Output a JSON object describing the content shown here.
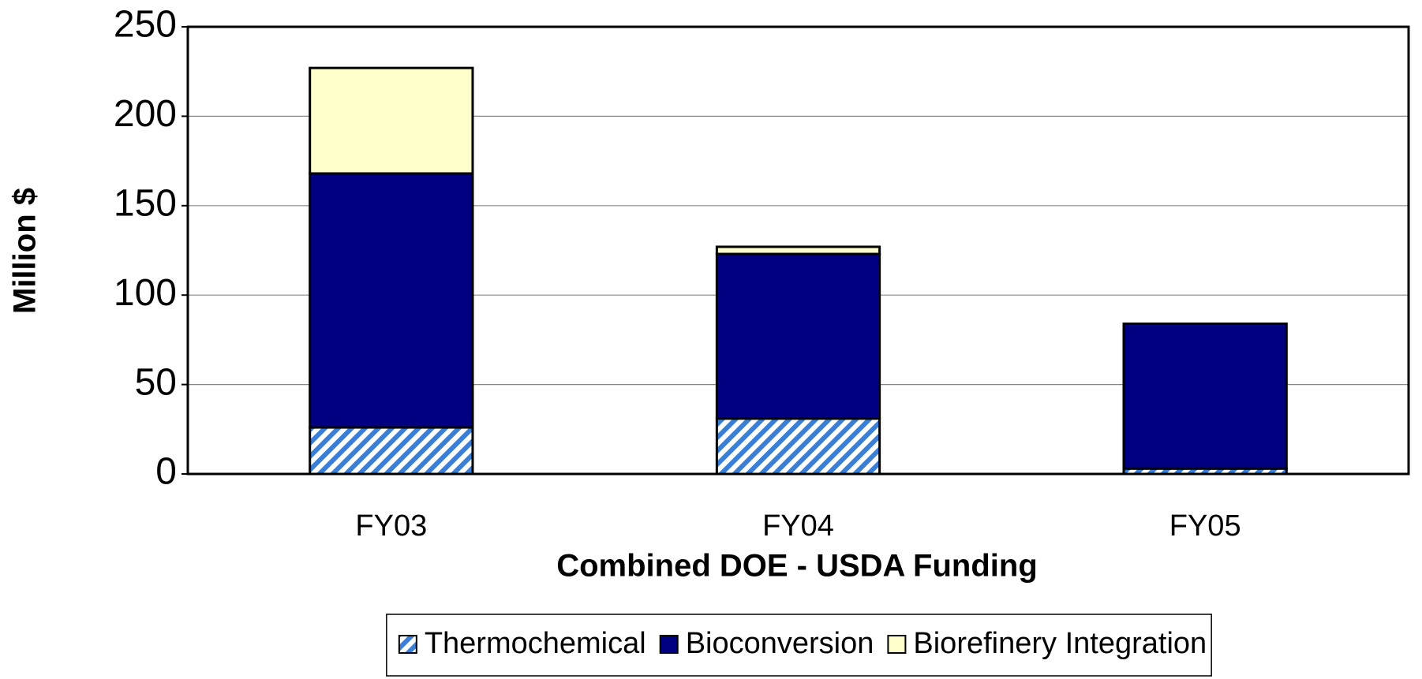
{
  "chart_data": {
    "type": "stacked_bar",
    "x_label": "Combined DOE - USDA Funding",
    "y_label": "Million $",
    "categories": [
      "FY03",
      "FY04",
      "FY05"
    ],
    "series": [
      {
        "name": "Thermochemical",
        "color": "#3a7fd5",
        "hatch": true,
        "values": [
          26,
          31,
          3
        ]
      },
      {
        "name": "Bioconversion",
        "color": "#000080",
        "values": [
          142,
          92,
          81
        ]
      },
      {
        "name": "Biorefinery Integration",
        "color": "#ffffcc",
        "values": [
          59,
          4,
          0
        ]
      }
    ],
    "ylim": [
      0,
      250
    ],
    "yticks": [
      0,
      50,
      100,
      150,
      200,
      250
    ],
    "grid": true,
    "legend": "bottom"
  }
}
